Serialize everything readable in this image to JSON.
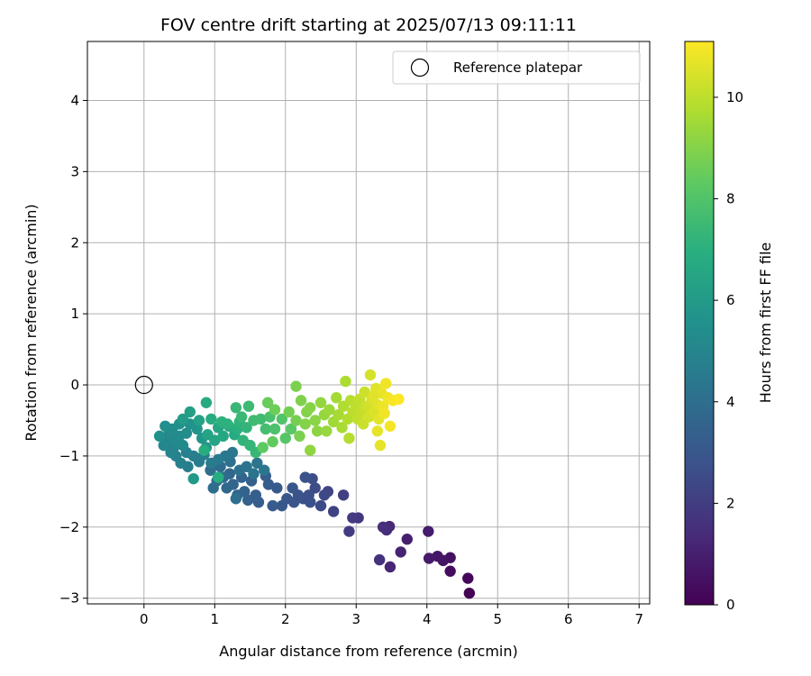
{
  "chart_data": {
    "type": "scatter",
    "title": "FOV centre drift starting at 2025/07/13 09:11:11",
    "xlabel": "Angular distance from reference (arcmin)",
    "ylabel": "Rotation from reference (arcmin)",
    "xlim": [
      -0.8,
      7.15
    ],
    "ylim": [
      -3.08,
      4.83
    ],
    "xticks": [
      0,
      1,
      2,
      3,
      4,
      5,
      6,
      7
    ],
    "yticks": [
      -3,
      -2,
      -1,
      0,
      1,
      2,
      3,
      4
    ],
    "grid": true,
    "legend": {
      "placement": "top-right",
      "entries": [
        "Reference platepar"
      ]
    },
    "reference_point": {
      "x": 0,
      "y": 0,
      "marker": "open-circle",
      "edge_color": "#000000"
    },
    "colorbar": {
      "label": "Hours from first FF file",
      "colormap": "viridis",
      "range": [
        0,
        11.1
      ],
      "ticks": [
        0,
        2,
        4,
        6,
        8,
        10
      ]
    },
    "point_color_by": "hours",
    "points_columns": [
      "x",
      "y",
      "hours"
    ],
    "points": [
      [
        4.6,
        -2.93,
        0.05
      ],
      [
        4.58,
        -2.72,
        0.2
      ],
      [
        4.33,
        -2.62,
        0.35
      ],
      [
        4.33,
        -2.43,
        0.5
      ],
      [
        4.23,
        -2.47,
        0.6
      ],
      [
        4.15,
        -2.41,
        0.7
      ],
      [
        4.03,
        -2.44,
        0.8
      ],
      [
        4.02,
        -2.06,
        0.9
      ],
      [
        3.72,
        -2.17,
        1.0
      ],
      [
        3.63,
        -2.35,
        1.1
      ],
      [
        3.48,
        -2.56,
        1.2
      ],
      [
        3.47,
        -1.99,
        1.3
      ],
      [
        3.43,
        -2.04,
        1.4
      ],
      [
        3.38,
        -2.0,
        1.5
      ],
      [
        3.33,
        -2.46,
        1.6
      ],
      [
        3.03,
        -1.87,
        1.8
      ],
      [
        2.95,
        -1.87,
        1.9
      ],
      [
        2.9,
        -2.06,
        2.0
      ],
      [
        2.82,
        -1.55,
        2.1
      ],
      [
        2.68,
        -1.78,
        2.2
      ],
      [
        2.6,
        -1.5,
        2.3
      ],
      [
        2.55,
        -1.55,
        2.4
      ],
      [
        2.5,
        -1.7,
        2.5
      ],
      [
        2.42,
        -1.45,
        2.55
      ],
      [
        2.38,
        -1.32,
        2.6
      ],
      [
        2.33,
        -1.55,
        2.65
      ],
      [
        2.25,
        -1.6,
        2.7
      ],
      [
        2.35,
        -1.65,
        2.75
      ],
      [
        2.28,
        -1.3,
        2.8
      ],
      [
        2.18,
        -1.55,
        2.85
      ],
      [
        2.12,
        -1.65,
        2.9
      ],
      [
        2.1,
        -1.45,
        2.95
      ],
      [
        2.02,
        -1.6,
        3.0
      ],
      [
        1.95,
        -1.7,
        3.05
      ],
      [
        1.88,
        -1.45,
        3.1
      ],
      [
        1.82,
        -1.7,
        3.15
      ],
      [
        1.76,
        -1.4,
        3.2
      ],
      [
        1.72,
        -1.28,
        3.25
      ],
      [
        1.62,
        -1.65,
        3.3
      ],
      [
        1.58,
        -1.55,
        3.35
      ],
      [
        1.52,
        -1.35,
        3.4
      ],
      [
        1.47,
        -1.62,
        3.45
      ],
      [
        1.42,
        -1.5,
        3.5
      ],
      [
        1.38,
        -1.3,
        3.55
      ],
      [
        1.32,
        -1.55,
        3.6
      ],
      [
        1.26,
        -1.4,
        3.65
      ],
      [
        1.21,
        -1.25,
        3.7
      ],
      [
        1.17,
        -1.45,
        3.75
      ],
      [
        1.12,
        -1.3,
        3.8
      ],
      [
        1.08,
        -1.15,
        3.85
      ],
      [
        1.03,
        -1.35,
        3.9
      ],
      [
        0.98,
        -1.45,
        3.95
      ],
      [
        0.94,
        -1.2,
        4.0
      ],
      [
        1.3,
        -1.6,
        4.05
      ],
      [
        1.22,
        -1.08,
        4.1
      ],
      [
        1.35,
        -1.2,
        4.15
      ],
      [
        1.45,
        -1.15,
        4.2
      ],
      [
        1.55,
        -1.25,
        4.25
      ],
      [
        1.6,
        -1.1,
        4.3
      ],
      [
        1.7,
        -1.2,
        4.35
      ],
      [
        1.25,
        -0.95,
        4.4
      ],
      [
        1.15,
        -1.0,
        4.45
      ],
      [
        1.05,
        -1.05,
        4.5
      ],
      [
        0.95,
        -1.1,
        4.55
      ],
      [
        0.85,
        -0.98,
        4.6
      ],
      [
        0.78,
        -1.08,
        4.65
      ],
      [
        0.7,
        -1.0,
        4.7
      ],
      [
        0.62,
        -1.15,
        4.75
      ],
      [
        0.6,
        -0.95,
        4.8
      ],
      [
        0.52,
        -1.1,
        4.85
      ],
      [
        0.45,
        -1.0,
        4.9
      ],
      [
        0.42,
        -0.88,
        4.95
      ],
      [
        0.38,
        -0.95,
        5.0
      ],
      [
        0.32,
        -0.78,
        5.05
      ],
      [
        0.28,
        -0.85,
        5.1
      ],
      [
        0.35,
        -0.7,
        5.15
      ],
      [
        0.45,
        -0.78,
        5.2
      ],
      [
        0.55,
        -0.85,
        5.25
      ],
      [
        0.5,
        -0.72,
        5.3
      ],
      [
        0.6,
        -0.68,
        5.35
      ],
      [
        0.4,
        -0.62,
        5.4
      ],
      [
        0.3,
        -0.58,
        5.45
      ],
      [
        0.22,
        -0.72,
        5.5
      ],
      [
        0.5,
        -0.55,
        5.55
      ],
      [
        0.65,
        -0.55,
        5.6
      ],
      [
        0.75,
        -0.62,
        5.7
      ],
      [
        0.82,
        -0.75,
        5.8
      ],
      [
        0.88,
        -0.88,
        5.9
      ],
      [
        0.7,
        -1.32,
        6.0
      ],
      [
        0.55,
        -0.48,
        6.1
      ],
      [
        0.65,
        -0.38,
        6.2
      ],
      [
        0.78,
        -0.5,
        6.3
      ],
      [
        0.9,
        -0.7,
        6.4
      ],
      [
        1.0,
        -0.78,
        6.5
      ],
      [
        1.05,
        -0.6,
        6.55
      ],
      [
        1.12,
        -0.72,
        6.6
      ],
      [
        1.2,
        -0.58,
        6.65
      ],
      [
        1.28,
        -0.7,
        6.7
      ],
      [
        0.88,
        -0.25,
        6.75
      ],
      [
        0.95,
        -0.48,
        6.8
      ],
      [
        1.05,
        -1.3,
        6.85
      ],
      [
        0.85,
        -0.92,
        6.9
      ],
      [
        1.32,
        -0.62,
        7.0
      ],
      [
        1.1,
        -0.52,
        7.05
      ],
      [
        1.18,
        -0.55,
        7.1
      ],
      [
        1.35,
        -0.52,
        7.15
      ],
      [
        1.4,
        -0.78,
        7.2
      ],
      [
        1.45,
        -0.6,
        7.25
      ],
      [
        1.5,
        -0.85,
        7.3
      ],
      [
        1.58,
        -0.95,
        7.35
      ],
      [
        1.3,
        -0.32,
        7.4
      ],
      [
        1.38,
        -0.45,
        7.45
      ],
      [
        1.48,
        -0.3,
        7.5
      ],
      [
        1.55,
        -0.5,
        7.55
      ],
      [
        1.65,
        -0.48,
        7.6
      ],
      [
        1.72,
        -0.62,
        7.7
      ],
      [
        1.78,
        -0.45,
        7.8
      ],
      [
        1.85,
        -0.62,
        7.9
      ],
      [
        1.95,
        -0.48,
        8.0
      ],
      [
        2.0,
        -0.75,
        8.1
      ],
      [
        2.08,
        -0.62,
        8.2
      ],
      [
        1.68,
        -0.88,
        8.3
      ],
      [
        1.82,
        -0.8,
        8.4
      ],
      [
        1.75,
        -0.25,
        8.5
      ],
      [
        1.85,
        -0.35,
        8.6
      ],
      [
        2.05,
        -0.38,
        8.7
      ],
      [
        2.15,
        -0.5,
        8.75
      ],
      [
        2.2,
        -0.72,
        8.8
      ],
      [
        2.15,
        -0.02,
        8.85
      ],
      [
        2.22,
        -0.22,
        8.9
      ],
      [
        2.3,
        -0.38,
        8.95
      ],
      [
        2.28,
        -0.55,
        9.0
      ],
      [
        2.35,
        -0.32,
        9.05
      ],
      [
        2.42,
        -0.5,
        9.1
      ],
      [
        2.45,
        -0.65,
        9.15
      ],
      [
        2.35,
        -0.92,
        9.2
      ],
      [
        2.5,
        -0.25,
        9.25
      ],
      [
        2.55,
        -0.42,
        9.3
      ],
      [
        2.58,
        -0.65,
        9.35
      ],
      [
        2.62,
        -0.35,
        9.4
      ],
      [
        2.68,
        -0.52,
        9.5
      ],
      [
        2.72,
        -0.18,
        9.55
      ],
      [
        2.75,
        -0.42,
        9.6
      ],
      [
        2.8,
        -0.6,
        9.65
      ],
      [
        2.85,
        0.05,
        9.7
      ],
      [
        2.82,
        -0.3,
        9.75
      ],
      [
        2.88,
        -0.48,
        9.8
      ],
      [
        2.9,
        -0.75,
        9.85
      ],
      [
        2.92,
        -0.22,
        9.9
      ],
      [
        2.95,
        -0.38,
        9.95
      ],
      [
        3.0,
        -0.3,
        10.0
      ],
      [
        3.02,
        -0.48,
        10.05
      ],
      [
        3.05,
        -0.2,
        10.1
      ],
      [
        3.08,
        -0.38,
        10.15
      ],
      [
        3.1,
        -0.55,
        10.2
      ],
      [
        3.12,
        -0.1,
        10.25
      ],
      [
        3.15,
        -0.3,
        10.3
      ],
      [
        3.18,
        -0.45,
        10.35
      ],
      [
        3.2,
        0.14,
        10.4
      ],
      [
        3.22,
        -0.2,
        10.45
      ],
      [
        3.25,
        -0.38,
        10.5
      ],
      [
        3.28,
        -0.05,
        10.55
      ],
      [
        3.3,
        -0.28,
        10.6
      ],
      [
        3.32,
        -0.48,
        10.65
      ],
      [
        3.34,
        -0.85,
        10.7
      ],
      [
        3.36,
        -0.12,
        10.75
      ],
      [
        3.38,
        -0.3,
        10.8
      ],
      [
        3.42,
        0.02,
        10.85
      ],
      [
        3.45,
        -0.18,
        10.9
      ],
      [
        3.48,
        -0.58,
        10.95
      ],
      [
        3.52,
        -0.22,
        11.0
      ],
      [
        3.6,
        -0.2,
        11.05
      ],
      [
        3.3,
        -0.65,
        10.7
      ],
      [
        3.4,
        -0.4,
        10.9
      ],
      [
        3.25,
        -0.15,
        10.6
      ]
    ]
  }
}
